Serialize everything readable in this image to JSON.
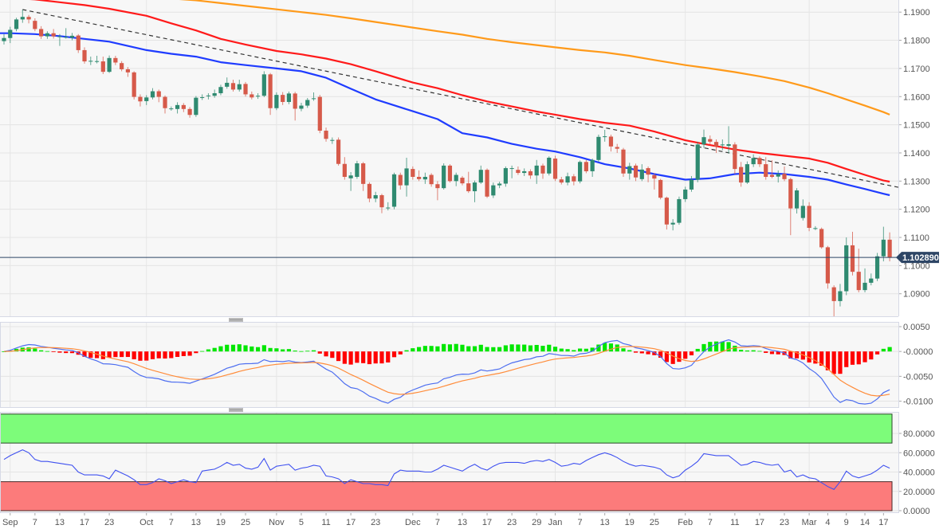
{
  "chart_data": {
    "type": "candlestick",
    "price_axis": {
      "ticks": [
        "1.1900",
        "1.1800",
        "1.1700",
        "1.1600",
        "1.1500",
        "1.1400",
        "1.1300",
        "1.1200",
        "1.1100",
        "1.1000",
        "1.0900"
      ],
      "range": [
        1.082,
        1.1943
      ]
    },
    "last_price": "1.102890",
    "x_ticks": [
      "Sep",
      "7",
      "13",
      "17",
      "23",
      "Oct",
      "7",
      "13",
      "19",
      "25",
      "Nov",
      "5",
      "11",
      "17",
      "23",
      "Dec",
      "7",
      "13",
      "17",
      "23",
      "29",
      "Jan",
      "7",
      "13",
      "19",
      "25",
      "Feb",
      "7",
      "11",
      "17",
      "23",
      "Mar",
      "4",
      "9",
      "14",
      "17"
    ],
    "ohlc": [
      [
        1.1797,
        1.1822,
        1.1785,
        1.1808
      ],
      [
        1.1808,
        1.1848,
        1.179,
        1.1837
      ],
      [
        1.184,
        1.188,
        1.1832,
        1.1874
      ],
      [
        1.1874,
        1.1909,
        1.1862,
        1.1883
      ],
      [
        1.1883,
        1.189,
        1.186,
        1.1874
      ],
      [
        1.1869,
        1.1878,
        1.1832,
        1.184
      ],
      [
        1.184,
        1.185,
        1.1805,
        1.1814
      ],
      [
        1.1814,
        1.1832,
        1.1805,
        1.1825
      ],
      [
        1.1825,
        1.184,
        1.1806,
        1.1814
      ],
      [
        1.1814,
        1.1822,
        1.178,
        1.1814
      ],
      [
        1.1812,
        1.1843,
        1.1806,
        1.1812
      ],
      [
        1.1809,
        1.1826,
        1.18,
        1.1816
      ],
      [
        1.1817,
        1.1822,
        1.1755,
        1.1765
      ],
      [
        1.1765,
        1.1775,
        1.1717,
        1.1725
      ],
      [
        1.1725,
        1.1742,
        1.1712,
        1.1727
      ],
      [
        1.1725,
        1.1745,
        1.1718,
        1.1726
      ],
      [
        1.1725,
        1.1742,
        1.168,
        1.1688
      ],
      [
        1.1688,
        1.1746,
        1.1684,
        1.1737
      ],
      [
        1.1737,
        1.1745,
        1.1712,
        1.1721
      ],
      [
        1.1719,
        1.1726,
        1.169,
        1.1697
      ],
      [
        1.1697,
        1.1705,
        1.167,
        1.1686
      ],
      [
        1.1686,
        1.169,
        1.159,
        1.1599
      ],
      [
        1.1599,
        1.1608,
        1.1565,
        1.1583
      ],
      [
        1.1584,
        1.1605,
        1.157,
        1.1597
      ],
      [
        1.1597,
        1.163,
        1.159,
        1.1619
      ],
      [
        1.1619,
        1.1625,
        1.158,
        1.1599
      ],
      [
        1.1599,
        1.1604,
        1.154,
        1.1559
      ],
      [
        1.1557,
        1.1565,
        1.155,
        1.1558
      ],
      [
        1.1556,
        1.158,
        1.154,
        1.157
      ],
      [
        1.157,
        1.1577,
        1.1545,
        1.1556
      ],
      [
        1.1556,
        1.1563,
        1.1525,
        1.1535
      ],
      [
        1.1535,
        1.1602,
        1.1528,
        1.1596
      ],
      [
        1.1597,
        1.1608,
        1.1588,
        1.1598
      ],
      [
        1.1603,
        1.1612,
        1.159,
        1.1604
      ],
      [
        1.1603,
        1.1625,
        1.1596,
        1.1612
      ],
      [
        1.1612,
        1.1642,
        1.1605,
        1.1634
      ],
      [
        1.1635,
        1.1668,
        1.1628,
        1.1649
      ],
      [
        1.1648,
        1.166,
        1.1618,
        1.1625
      ],
      [
        1.1625,
        1.166,
        1.1618,
        1.1644
      ],
      [
        1.1645,
        1.1652,
        1.16,
        1.1608
      ],
      [
        1.1608,
        1.1618,
        1.159,
        1.1597
      ],
      [
        1.1602,
        1.1612,
        1.1592,
        1.1603
      ],
      [
        1.1603,
        1.169,
        1.1598,
        1.1679
      ],
      [
        1.1679,
        1.1684,
        1.1535,
        1.1559
      ],
      [
        1.1559,
        1.1615,
        1.1552,
        1.1606
      ],
      [
        1.1606,
        1.1616,
        1.157,
        1.1581
      ],
      [
        1.1581,
        1.1618,
        1.1573,
        1.1611
      ],
      [
        1.1611,
        1.1617,
        1.1515,
        1.1557
      ],
      [
        1.1557,
        1.1578,
        1.1548,
        1.1568
      ],
      [
        1.1568,
        1.1595,
        1.156,
        1.1588
      ],
      [
        1.1593,
        1.1615,
        1.1585,
        1.1594
      ],
      [
        1.1599,
        1.1606,
        1.147,
        1.1479
      ],
      [
        1.1479,
        1.149,
        1.144,
        1.145
      ],
      [
        1.1445,
        1.1455,
        1.1432,
        1.1446
      ],
      [
        1.1447,
        1.1455,
        1.1355,
        1.1361
      ],
      [
        1.1361,
        1.1385,
        1.1305,
        1.1315
      ],
      [
        1.131,
        1.1332,
        1.1265,
        1.132
      ],
      [
        1.1315,
        1.1372,
        1.1308,
        1.1363
      ],
      [
        1.1363,
        1.1368,
        1.1265,
        1.129
      ],
      [
        1.129,
        1.1296,
        1.1225,
        1.1238
      ],
      [
        1.1238,
        1.1262,
        1.1225,
        1.125
      ],
      [
        1.125,
        1.1255,
        1.1186,
        1.1207
      ],
      [
        1.1205,
        1.1225,
        1.1196,
        1.1206
      ],
      [
        1.1209,
        1.133,
        1.12,
        1.1324
      ],
      [
        1.1322,
        1.133,
        1.127,
        1.1285
      ],
      [
        1.1285,
        1.1383,
        1.1245,
        1.1345
      ],
      [
        1.1343,
        1.1352,
        1.1305,
        1.1315
      ],
      [
        1.1315,
        1.1338,
        1.13,
        1.1307
      ],
      [
        1.1306,
        1.133,
        1.129,
        1.1315
      ],
      [
        1.1322,
        1.1328,
        1.128,
        1.1289
      ],
      [
        1.1289,
        1.13,
        1.1232,
        1.1275
      ],
      [
        1.1275,
        1.1363,
        1.127,
        1.1355
      ],
      [
        1.1355,
        1.136,
        1.1295,
        1.13
      ],
      [
        1.13,
        1.133,
        1.1282,
        1.1322
      ],
      [
        1.1312,
        1.1318,
        1.1285,
        1.1292
      ],
      [
        1.1292,
        1.1333,
        1.1258,
        1.1264
      ],
      [
        1.1264,
        1.1302,
        1.1225,
        1.1295
      ],
      [
        1.1295,
        1.1355,
        1.129,
        1.134
      ],
      [
        1.134,
        1.1345,
        1.124,
        1.1245
      ],
      [
        1.1249,
        1.1295,
        1.124,
        1.1285
      ],
      [
        1.1285,
        1.1298,
        1.1275,
        1.1291
      ],
      [
        1.1291,
        1.1352,
        1.128,
        1.1346
      ],
      [
        1.1345,
        1.1355,
        1.131,
        1.1346
      ],
      [
        1.134,
        1.1352,
        1.1322,
        1.1329
      ],
      [
        1.1329,
        1.1345,
        1.1318,
        1.1335
      ],
      [
        1.1335,
        1.1342,
        1.1308,
        1.132
      ],
      [
        1.132,
        1.1375,
        1.129,
        1.1355
      ],
      [
        1.1355,
        1.1362,
        1.1308,
        1.1327
      ],
      [
        1.1327,
        1.1388,
        1.132,
        1.1383
      ],
      [
        1.138,
        1.139,
        1.13,
        1.1308
      ],
      [
        1.1306,
        1.1315,
        1.1288,
        1.1295
      ],
      [
        1.1295,
        1.133,
        1.1285,
        1.1317
      ],
      [
        1.1317,
        1.1325,
        1.1285,
        1.1299
      ],
      [
        1.1299,
        1.1373,
        1.1292,
        1.1368
      ],
      [
        1.1368,
        1.1375,
        1.1328,
        1.1335
      ],
      [
        1.1335,
        1.138,
        1.1315,
        1.1375
      ],
      [
        1.1375,
        1.1465,
        1.1368,
        1.1457
      ],
      [
        1.1458,
        1.1482,
        1.144,
        1.1459
      ],
      [
        1.1458,
        1.1465,
        1.1405,
        1.1423
      ],
      [
        1.1421,
        1.1432,
        1.14,
        1.1415
      ],
      [
        1.1412,
        1.1418,
        1.1315,
        1.1327
      ],
      [
        1.1327,
        1.1365,
        1.1305,
        1.1353
      ],
      [
        1.1355,
        1.1362,
        1.13,
        1.1313
      ],
      [
        1.1307,
        1.136,
        1.13,
        1.1341
      ],
      [
        1.1346,
        1.1352,
        1.1296,
        1.1323
      ],
      [
        1.1321,
        1.1328,
        1.127,
        1.1309
      ],
      [
        1.1304,
        1.1308,
        1.1235,
        1.1241
      ],
      [
        1.1241,
        1.1245,
        1.1128,
        1.1146
      ],
      [
        1.1146,
        1.1165,
        1.1125,
        1.1152
      ],
      [
        1.1152,
        1.1245,
        1.1145,
        1.1236
      ],
      [
        1.1236,
        1.128,
        1.1226,
        1.127
      ],
      [
        1.127,
        1.1318,
        1.1262,
        1.1305
      ],
      [
        1.1305,
        1.144,
        1.1296,
        1.143
      ],
      [
        1.143,
        1.1483,
        1.1418,
        1.1456
      ],
      [
        1.1449,
        1.1462,
        1.1432,
        1.144
      ],
      [
        1.1439,
        1.1448,
        1.14,
        1.1423
      ],
      [
        1.1428,
        1.1448,
        1.141,
        1.143
      ],
      [
        1.1425,
        1.1495,
        1.1398,
        1.1431
      ],
      [
        1.143,
        1.1438,
        1.1325,
        1.1343
      ],
      [
        1.135,
        1.1368,
        1.128,
        1.1295
      ],
      [
        1.1295,
        1.137,
        1.129,
        1.136
      ],
      [
        1.136,
        1.1395,
        1.135,
        1.1382
      ],
      [
        1.1382,
        1.1388,
        1.135,
        1.136
      ],
      [
        1.136,
        1.1385,
        1.1305,
        1.1315
      ],
      [
        1.1322,
        1.1374,
        1.131,
        1.1315
      ],
      [
        1.1316,
        1.1338,
        1.1295,
        1.1325
      ],
      [
        1.1326,
        1.1352,
        1.13,
        1.1307
      ],
      [
        1.1307,
        1.1312,
        1.1108,
        1.1203
      ],
      [
        1.1203,
        1.1275,
        1.1185,
        1.1267
      ],
      [
        1.1169,
        1.1235,
        1.116,
        1.1212
      ],
      [
        1.1212,
        1.1225,
        1.1122,
        1.1134
      ],
      [
        1.1132,
        1.114,
        1.1126,
        1.1133
      ],
      [
        1.113,
        1.1135,
        1.106,
        1.1065
      ],
      [
        1.1065,
        1.107,
        1.0918,
        1.0937
      ],
      [
        1.0923,
        1.093,
        1.0806,
        1.0874
      ],
      [
        1.0874,
        1.0935,
        1.0855,
        1.0909
      ],
      [
        1.0909,
        1.11,
        1.0895,
        1.1072
      ],
      [
        1.1072,
        1.112,
        1.0965,
        1.0978
      ],
      [
        1.0978,
        1.106,
        1.0905,
        1.0913
      ],
      [
        1.0913,
        1.099,
        1.0905,
        1.0939
      ],
      [
        1.0939,
        1.0972,
        1.093,
        1.0954
      ],
      [
        1.0954,
        1.1045,
        1.0945,
        1.1033
      ],
      [
        1.1033,
        1.1138,
        1.1015,
        1.1092
      ],
      [
        1.1092,
        1.1118,
        1.1015,
        1.1029
      ]
    ],
    "moving_averages": [
      {
        "color": "#1f3cff",
        "values_at_x_ticks_and_last": [
          1.1825,
          1.1822,
          1.1815,
          1.1805,
          1.1795,
          1.1765,
          1.1752,
          1.1742,
          1.1722,
          1.1712,
          1.17,
          1.169,
          1.1667,
          1.1628,
          1.159,
          1.1548,
          1.152,
          1.147,
          1.1455,
          1.1432,
          1.1415,
          1.1405,
          1.1385,
          1.136,
          1.1345,
          1.1325,
          1.1305,
          1.131,
          1.1325,
          1.133,
          1.1325,
          1.1315,
          1.1305,
          1.1288,
          1.1272,
          1.1255,
          1.125
        ]
      },
      {
        "color": "#ff1a1a",
        "values_at_x_ticks_and_last": [
          1.195,
          1.1945,
          1.1935,
          1.1925,
          1.1912,
          1.1887,
          1.186,
          1.1835,
          1.1805,
          1.1785,
          1.1762,
          1.175,
          1.1735,
          1.1715,
          1.169,
          1.165,
          1.163,
          1.1605,
          1.1583,
          1.1565,
          1.1547,
          1.1536,
          1.152,
          1.1507,
          1.1497,
          1.1476,
          1.1445,
          1.1428,
          1.1412,
          1.14,
          1.139,
          1.138,
          1.1365,
          1.1343,
          1.1322,
          1.1302,
          1.1298
        ]
      },
      {
        "color": "#ff9a1a",
        "values_at_x_ticks_and_last": [
          1.1975,
          1.1972,
          1.1968,
          1.1964,
          1.196,
          1.1953,
          1.1948,
          1.1942,
          1.1932,
          1.1922,
          1.191,
          1.19,
          1.189,
          1.1878,
          1.1865,
          1.1845,
          1.1832,
          1.182,
          1.1805,
          1.1793,
          1.1783,
          1.1775,
          1.1765,
          1.1757,
          1.1745,
          1.173,
          1.1712,
          1.17,
          1.1687,
          1.1672,
          1.1655,
          1.1632,
          1.1612,
          1.159,
          1.1568,
          1.1545,
          1.1536
        ]
      }
    ],
    "trendline": {
      "style": "dashed",
      "color": "#333333",
      "start_price": 1.1909,
      "end_price": 1.1278
    },
    "macd": {
      "axis_ticks": [
        "0.0050",
        "-0.0000",
        "-0.0050",
        "-0.0100"
      ],
      "range": [
        -0.0112,
        0.0058
      ],
      "line_color": "#4d6ef0",
      "signal_color": "#ff8c3a",
      "hist_up_color": "#00e600",
      "hist_down_color": "#ff0000"
    },
    "rsi": {
      "axis_ticks": [
        "80.0000",
        "60.0000",
        "40.0000",
        "20.0000",
        "0.0000"
      ],
      "range": [
        0,
        100
      ],
      "overbought": 70,
      "oversold": 30,
      "line_color": "#3f51f0",
      "values": [
        53,
        57,
        60,
        63,
        60,
        53,
        51,
        51,
        50,
        49,
        48,
        47,
        40,
        37,
        37,
        37,
        36,
        33,
        42,
        39,
        36,
        32,
        27,
        27,
        29,
        33,
        31,
        28,
        30,
        32,
        30,
        29,
        41,
        42,
        43,
        46,
        50,
        47,
        48,
        44,
        43,
        45,
        54,
        42,
        46,
        47,
        48,
        42,
        44,
        45,
        47,
        46,
        36,
        35,
        33,
        28,
        32,
        30,
        28,
        28,
        27,
        27,
        26,
        38,
        42,
        41,
        41,
        41,
        40,
        40,
        43,
        47,
        45,
        43,
        41,
        45,
        48,
        44,
        42,
        46,
        49,
        50,
        50,
        50,
        49,
        51,
        52,
        51,
        53,
        50,
        46,
        47,
        49,
        48,
        52,
        55,
        58,
        60,
        58,
        55,
        51,
        48,
        46,
        47,
        46,
        45,
        43,
        37,
        34,
        36,
        42,
        46,
        51,
        59,
        58,
        57,
        57,
        57,
        52,
        47,
        48,
        51,
        50,
        48,
        47,
        48,
        40,
        42,
        35,
        37,
        34,
        33,
        29,
        25,
        22,
        30,
        41,
        36,
        34,
        36,
        38,
        42,
        47,
        44
      ]
    }
  },
  "colors": {
    "candle_up": "#2f8a70",
    "candle_down": "#d65a4a",
    "last_price_label": "#2d4565",
    "overbought_zone": "#7dfc7a",
    "oversold_zone": "#fc7b7b"
  }
}
